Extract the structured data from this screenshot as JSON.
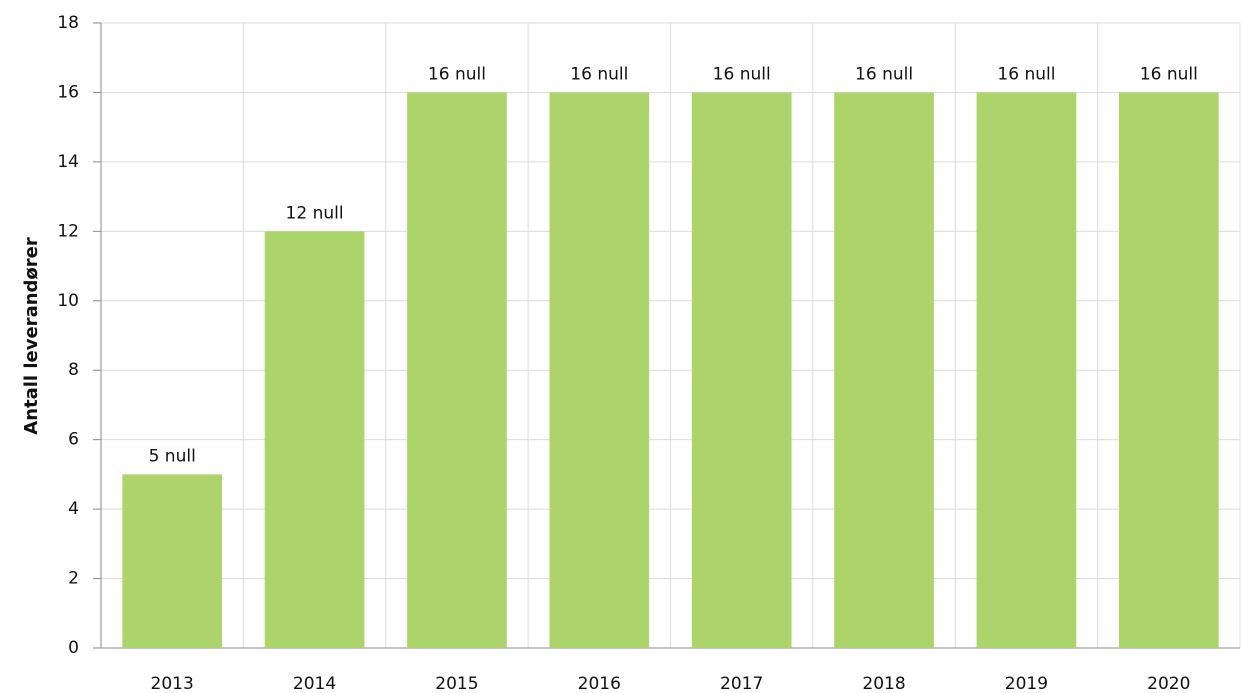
{
  "chart_data": {
    "type": "bar",
    "y_label": "Antall leverandører",
    "categories": [
      "2013",
      "2014",
      "2015",
      "2016",
      "2017",
      "2018",
      "2019",
      "2020"
    ],
    "values": [
      5,
      12,
      16,
      16,
      16,
      16,
      16,
      16
    ],
    "value_labels": [
      "5 null",
      "12 null",
      "16 null",
      "16 null",
      "16 null",
      "16 null",
      "16 null",
      "16 null"
    ],
    "color": "#acd46a",
    "ylim": [
      0,
      18
    ],
    "yticks": [
      0,
      2,
      4,
      6,
      8,
      10,
      12,
      14,
      16,
      18
    ],
    "grid": true
  }
}
